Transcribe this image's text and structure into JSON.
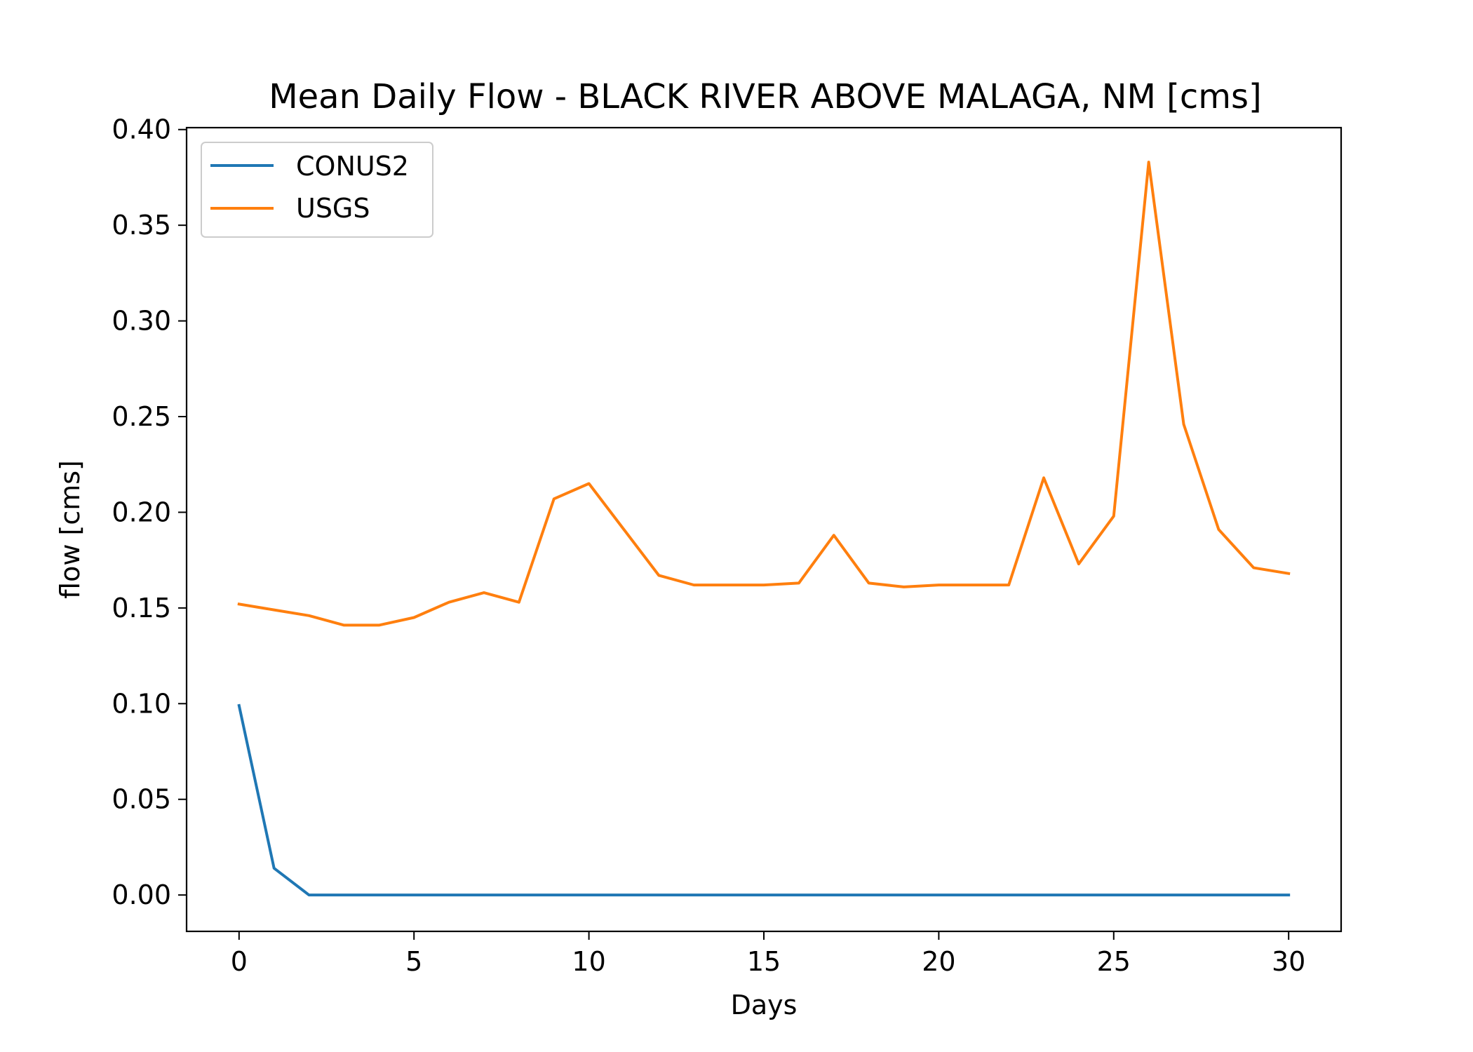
{
  "chart_data": {
    "type": "line",
    "title": "Mean Daily Flow - BLACK RIVER ABOVE MALAGA, NM [cms]",
    "xlabel": "Days",
    "ylabel": "flow [cms]",
    "xlim": [
      -1.5,
      31.5
    ],
    "ylim": [
      -0.019,
      0.401
    ],
    "xticks": [
      0,
      5,
      10,
      15,
      20,
      25,
      30
    ],
    "xtick_labels": [
      "0",
      "5",
      "10",
      "15",
      "20",
      "25",
      "30"
    ],
    "yticks": [
      0.0,
      0.05,
      0.1,
      0.15,
      0.2,
      0.25,
      0.3,
      0.35,
      0.4
    ],
    "ytick_labels": [
      "0.00",
      "0.05",
      "0.10",
      "0.15",
      "0.20",
      "0.25",
      "0.30",
      "0.35",
      "0.40"
    ],
    "grid": false,
    "legend_position": "top-left",
    "x": [
      0,
      1,
      2,
      3,
      4,
      5,
      6,
      7,
      8,
      9,
      10,
      11,
      12,
      13,
      14,
      15,
      16,
      17,
      18,
      19,
      20,
      21,
      22,
      23,
      24,
      25,
      26,
      27,
      28,
      29,
      30
    ],
    "series": [
      {
        "name": "CONUS2",
        "color": "#1f77b4",
        "values": [
          0.099,
          0.014,
          0.0,
          0.0,
          0.0,
          0.0,
          0.0,
          0.0,
          0.0,
          0.0,
          0.0,
          0.0,
          0.0,
          0.0,
          0.0,
          0.0,
          0.0,
          0.0,
          0.0,
          0.0,
          0.0,
          0.0,
          0.0,
          0.0,
          0.0,
          0.0,
          0.0,
          0.0,
          0.0,
          0.0,
          0.0
        ]
      },
      {
        "name": "USGS",
        "color": "#ff7f0e",
        "values": [
          0.152,
          0.149,
          0.146,
          0.141,
          0.141,
          0.145,
          0.153,
          0.158,
          0.153,
          0.207,
          0.215,
          0.191,
          0.167,
          0.162,
          0.162,
          0.162,
          0.163,
          0.188,
          0.163,
          0.161,
          0.162,
          0.162,
          0.162,
          0.218,
          0.173,
          0.198,
          0.383,
          0.246,
          0.191,
          0.171,
          0.168
        ]
      }
    ]
  }
}
